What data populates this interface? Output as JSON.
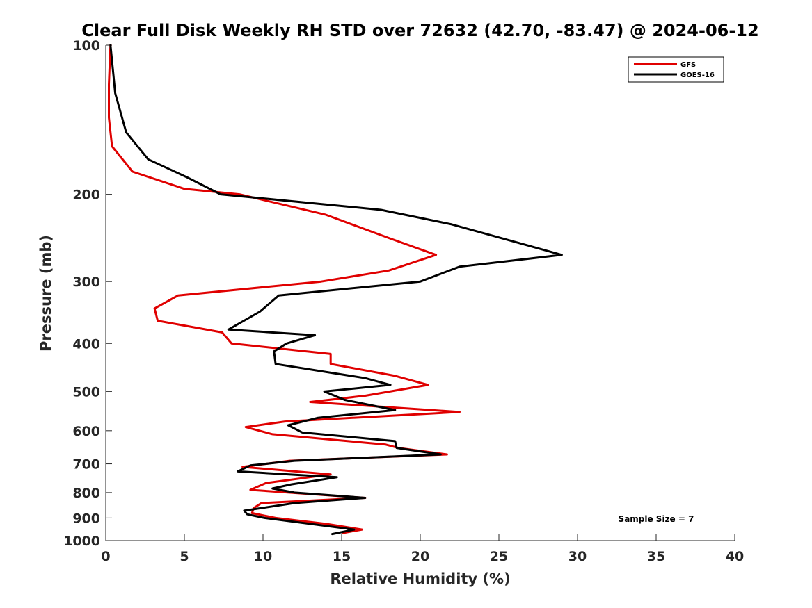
{
  "chart_data": {
    "type": "line",
    "title": "Clear Full Disk Weekly RH STD over 72632 (42.70, -83.47) @ 2024-06-12",
    "xlabel": "Relative Humidity (%)",
    "ylabel": "Pressure (mb)",
    "xlim": [
      0,
      40
    ],
    "ylim": [
      100,
      1000
    ],
    "yscale": "log",
    "y_reversed": true,
    "grid": false,
    "legend_position": "top-right",
    "x_ticks": [
      "0",
      "5",
      "10",
      "15",
      "20",
      "25",
      "30",
      "35",
      "40"
    ],
    "y_ticks": [
      "100",
      "200",
      "300",
      "400",
      "500",
      "600",
      "700",
      "800",
      "900",
      "1000"
    ],
    "annotation": "Sample Size = 7",
    "series": [
      {
        "name": "GFS",
        "color": "#e00000",
        "points": [
          [
            0.3,
            100
          ],
          [
            0.2,
            120
          ],
          [
            0.2,
            140
          ],
          [
            0.4,
            160
          ],
          [
            1.7,
            180
          ],
          [
            5.0,
            195
          ],
          [
            8.5,
            200
          ],
          [
            14.0,
            220
          ],
          [
            18.0,
            245
          ],
          [
            21.0,
            265
          ],
          [
            18.0,
            285
          ],
          [
            13.7,
            300
          ],
          [
            4.6,
            320
          ],
          [
            3.1,
            340
          ],
          [
            3.3,
            360
          ],
          [
            7.4,
            380
          ],
          [
            8.0,
            400
          ],
          [
            14.3,
            420
          ],
          [
            14.3,
            440
          ],
          [
            18.4,
            465
          ],
          [
            20.5,
            485
          ],
          [
            16.5,
            510
          ],
          [
            13.0,
            525
          ],
          [
            22.5,
            550
          ],
          [
            11.4,
            575
          ],
          [
            8.9,
            590
          ],
          [
            10.6,
            610
          ],
          [
            17.8,
            640
          ],
          [
            18.6,
            650
          ],
          [
            21.7,
            670
          ],
          [
            11.7,
            690
          ],
          [
            8.7,
            710
          ],
          [
            14.3,
            735
          ],
          [
            10.2,
            765
          ],
          [
            9.2,
            790
          ],
          [
            16.5,
            820
          ],
          [
            9.9,
            840
          ],
          [
            9.4,
            860
          ],
          [
            9.3,
            880
          ],
          [
            10.8,
            900
          ],
          [
            14.0,
            925
          ],
          [
            16.3,
            950
          ],
          [
            15.1,
            965
          ]
        ]
      },
      {
        "name": "GOES-16",
        "color": "#000000",
        "points": [
          [
            0.3,
            100
          ],
          [
            0.6,
            125
          ],
          [
            1.3,
            150
          ],
          [
            2.7,
            170
          ],
          [
            5.2,
            185
          ],
          [
            7.3,
            200
          ],
          [
            17.5,
            215
          ],
          [
            22.0,
            230
          ],
          [
            29.0,
            265
          ],
          [
            22.5,
            280
          ],
          [
            20.0,
            300
          ],
          [
            11.0,
            320
          ],
          [
            9.8,
            345
          ],
          [
            7.8,
            375
          ],
          [
            13.3,
            385
          ],
          [
            11.5,
            400
          ],
          [
            10.7,
            415
          ],
          [
            10.8,
            440
          ],
          [
            16.5,
            470
          ],
          [
            18.1,
            485
          ],
          [
            13.9,
            500
          ],
          [
            15.2,
            520
          ],
          [
            18.4,
            545
          ],
          [
            13.5,
            565
          ],
          [
            11.6,
            585
          ],
          [
            12.5,
            605
          ],
          [
            18.4,
            630
          ],
          [
            18.5,
            650
          ],
          [
            21.3,
            670
          ],
          [
            12.0,
            690
          ],
          [
            9.2,
            705
          ],
          [
            8.4,
            725
          ],
          [
            14.7,
            745
          ],
          [
            11.8,
            770
          ],
          [
            10.6,
            785
          ],
          [
            12.0,
            800
          ],
          [
            16.5,
            820
          ],
          [
            12.0,
            840
          ],
          [
            8.8,
            870
          ],
          [
            9.0,
            885
          ],
          [
            10.1,
            900
          ],
          [
            15.8,
            950
          ],
          [
            14.4,
            970
          ]
        ]
      }
    ]
  }
}
